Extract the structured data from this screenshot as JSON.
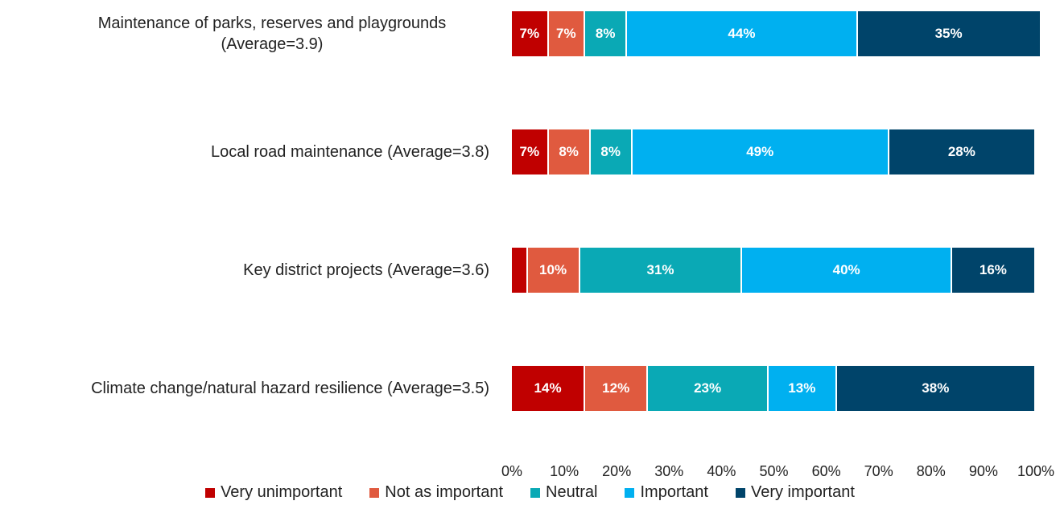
{
  "chart_data": {
    "type": "stacked-bar-horizontal",
    "categories": [
      "Maintenance of parks, reserves and playgrounds (Average=3.9)",
      "Local road maintenance (Average=3.8)",
      "Key district projects (Average=3.6)",
      "Climate change/natural hazard resilience (Average=3.5)"
    ],
    "series": [
      {
        "name": "Very unimportant",
        "color": "#c00000",
        "values": [
          7,
          7,
          3,
          14
        ],
        "value_labels": [
          "7%",
          "7%",
          null,
          "14%"
        ]
      },
      {
        "name": "Not as important",
        "color": "#e05a3f",
        "values": [
          7,
          8,
          10,
          12
        ],
        "value_labels": [
          "7%",
          "8%",
          "10%",
          "12%"
        ]
      },
      {
        "name": "Neutral",
        "color": "#0aa9b5",
        "values": [
          8,
          8,
          31,
          23
        ],
        "value_labels": [
          "8%",
          "8%",
          "31%",
          "23%"
        ]
      },
      {
        "name": "Important",
        "color": "#00b0f0",
        "values": [
          44,
          49,
          40,
          13
        ],
        "value_labels": [
          "44%",
          "49%",
          "40%",
          "13%"
        ]
      },
      {
        "name": "Very important",
        "color": "#00446a",
        "values": [
          35,
          28,
          16,
          38
        ],
        "value_labels": [
          "35%",
          "28%",
          "16%",
          "38%"
        ]
      }
    ],
    "xlim": [
      0,
      100
    ],
    "xticks": [
      {
        "value": 0,
        "label": "0%"
      },
      {
        "value": 10,
        "label": "10%"
      },
      {
        "value": 20,
        "label": "20%"
      },
      {
        "value": 30,
        "label": "30%"
      },
      {
        "value": 40,
        "label": "40%"
      },
      {
        "value": 50,
        "label": "50%"
      },
      {
        "value": 60,
        "label": "60%"
      },
      {
        "value": 70,
        "label": "70%"
      },
      {
        "value": 80,
        "label": "80%"
      },
      {
        "value": 90,
        "label": "90%"
      },
      {
        "value": 100,
        "label": "100%"
      }
    ],
    "legend": "bottom"
  }
}
